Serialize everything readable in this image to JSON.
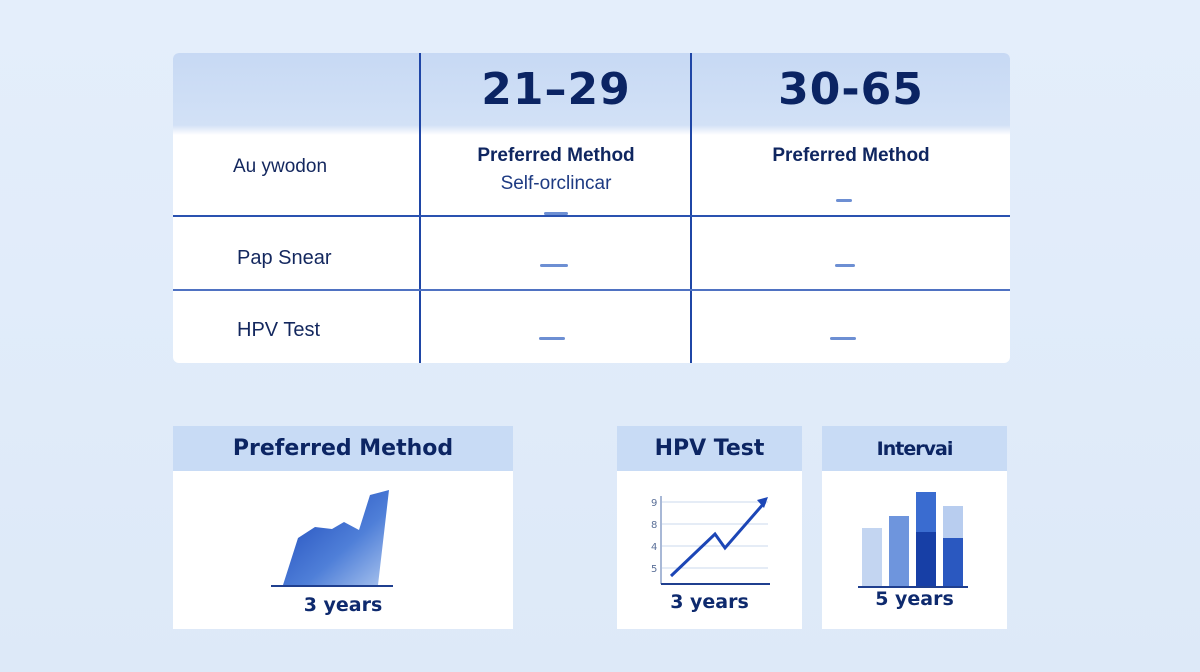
{
  "table": {
    "columns": [
      "21–29",
      "30-65"
    ],
    "rows": [
      {
        "label": "Au ywodon",
        "col1_title": "Preferred Method",
        "col1_sub": "Self-orclincar",
        "col2_title": "Preferred Method"
      },
      {
        "label": "Pap Snear"
      },
      {
        "label": "HPV Test"
      }
    ]
  },
  "cards": [
    {
      "title": "Preferred Method",
      "footer": "3 years",
      "icon": "area-chart-icon"
    },
    {
      "title": "HPV Test",
      "footer": "3 years",
      "icon": "line-chart-icon",
      "ticks": [
        "9",
        "8",
        "4",
        "5"
      ]
    },
    {
      "title": "Intervai",
      "footer": "5 years",
      "icon": "bar-chart-icon"
    }
  ],
  "colors": {
    "accent": "#1f46a6",
    "header": "#c8dbf5",
    "background": "#e4eefb"
  }
}
